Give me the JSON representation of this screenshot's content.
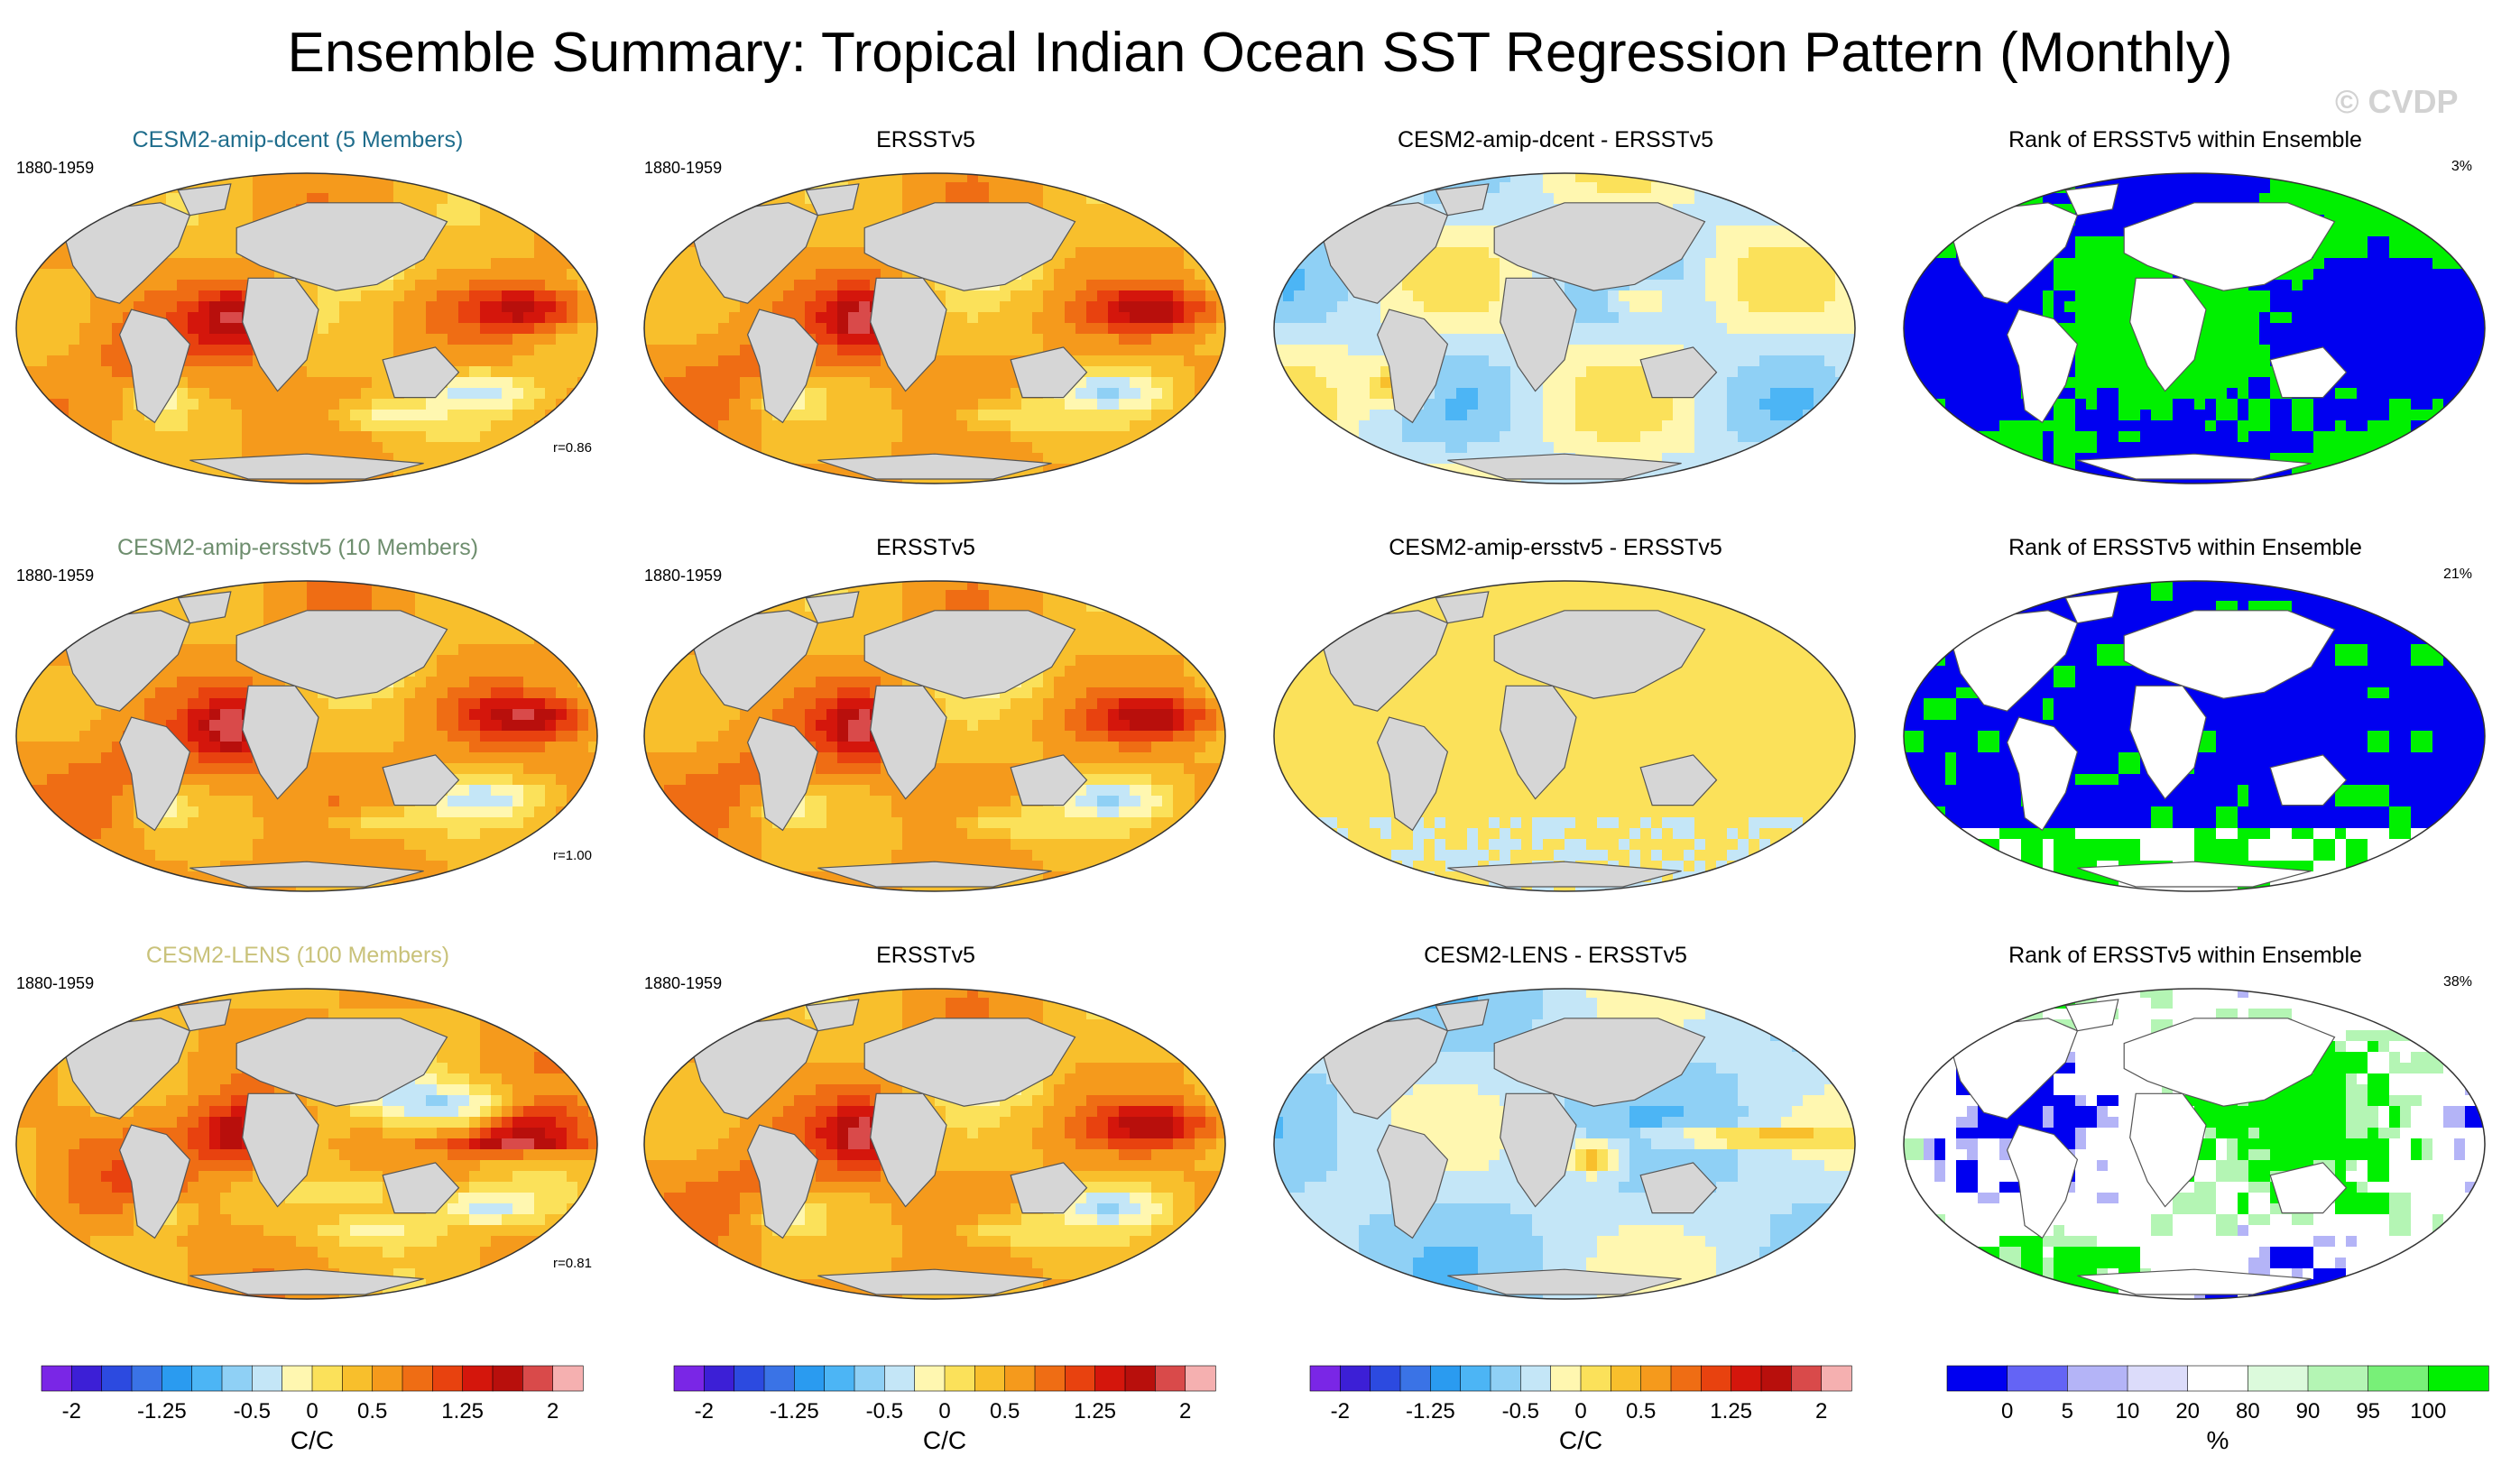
{
  "title": "Ensemble Summary: Tropical Indian Ocean SST Regression Pattern (Monthly)",
  "watermark": "© CVDP",
  "colors": {
    "div_scale": [
      "#7a26e6",
      "#3c1fd6",
      "#2c4ae0",
      "#3a73e6",
      "#2a9bf0",
      "#4cb5f5",
      "#8fd0f5",
      "#c4e6f7",
      "#fff7b0",
      "#fbe15a",
      "#f8bf2c",
      "#f59a1c",
      "#ef6d14",
      "#e8420f",
      "#d4160c",
      "#b80f0c",
      "#d94a4a",
      "#f5b0b0"
    ],
    "rank_scale": [
      "#0000f0",
      "#6464f5",
      "#b4b4f7",
      "#dcdcfa",
      "#ffffff",
      "#dcfadc",
      "#b4f5b4",
      "#78f078",
      "#00f000"
    ],
    "land": "#d6d6d6"
  },
  "chart_data": [
    {
      "type": "heatmap",
      "title": "CESM2-amip-dcent (5 Members)",
      "title_color": "#1f6d8c",
      "period": "1880-1959",
      "pattern_correlation": "r=0.86",
      "units": "C/C"
    },
    {
      "type": "heatmap",
      "title": "ERSSTv5",
      "period": "1880-1959",
      "units": "C/C"
    },
    {
      "type": "heatmap",
      "title": "CESM2-amip-dcent - ERSSTv5",
      "units": "C/C"
    },
    {
      "type": "heatmap",
      "title": "Rank of ERSSTv5 within Ensemble",
      "percent": "3%",
      "units": "%"
    },
    {
      "type": "heatmap",
      "title": "CESM2-amip-ersstv5 (10 Members)",
      "title_color": "#6e8e6e",
      "period": "1880-1959",
      "pattern_correlation": "r=1.00",
      "units": "C/C"
    },
    {
      "type": "heatmap",
      "title": "ERSSTv5",
      "period": "1880-1959",
      "units": "C/C"
    },
    {
      "type": "heatmap",
      "title": "CESM2-amip-ersstv5 - ERSSTv5",
      "units": "C/C"
    },
    {
      "type": "heatmap",
      "title": "Rank of ERSSTv5 within Ensemble",
      "percent": "21%",
      "units": "%"
    },
    {
      "type": "heatmap",
      "title": "CESM2-LENS (100 Members)",
      "title_color": "#c9c27a",
      "period": "1880-1959",
      "pattern_correlation": "r=0.81",
      "units": "C/C"
    },
    {
      "type": "heatmap",
      "title": "ERSSTv5",
      "period": "1880-1959",
      "units": "C/C"
    },
    {
      "type": "heatmap",
      "title": "CESM2-LENS - ERSSTv5",
      "units": "C/C"
    },
    {
      "type": "heatmap",
      "title": "Rank of ERSSTv5 within Ensemble",
      "percent": "38%",
      "units": "%"
    }
  ],
  "colorbars": [
    {
      "unit": "C/C",
      "ticks": [
        {
          "label": "-2",
          "v": -2
        },
        {
          "label": "-1.25",
          "v": -1.25
        },
        {
          "label": "-0.5",
          "v": -0.5
        },
        {
          "label": "0",
          "v": 0
        },
        {
          "label": "0.5",
          "v": 0.5
        },
        {
          "label": "1.25",
          "v": 1.25
        },
        {
          "label": "2",
          "v": 2
        }
      ]
    },
    {
      "unit": "C/C",
      "ticks": [
        {
          "label": "-2",
          "v": -2
        },
        {
          "label": "-1.25",
          "v": -1.25
        },
        {
          "label": "-0.5",
          "v": -0.5
        },
        {
          "label": "0",
          "v": 0
        },
        {
          "label": "0.5",
          "v": 0.5
        },
        {
          "label": "1.25",
          "v": 1.25
        },
        {
          "label": "2",
          "v": 2
        }
      ]
    },
    {
      "unit": "C/C",
      "ticks": [
        {
          "label": "-2",
          "v": -2
        },
        {
          "label": "-1.25",
          "v": -1.25
        },
        {
          "label": "-0.5",
          "v": -0.5
        },
        {
          "label": "0",
          "v": 0
        },
        {
          "label": "0.5",
          "v": 0.5
        },
        {
          "label": "1.25",
          "v": 1.25
        },
        {
          "label": "2",
          "v": 2
        }
      ]
    },
    {
      "unit": "%",
      "ticks": [
        {
          "label": "0",
          "i": 1
        },
        {
          "label": "5",
          "i": 2
        },
        {
          "label": "10",
          "i": 3
        },
        {
          "label": "20",
          "i": 4
        },
        {
          "label": "80",
          "i": 5
        },
        {
          "label": "90",
          "i": 6
        },
        {
          "label": "95",
          "i": 7
        },
        {
          "label": "100",
          "i": 8
        }
      ]
    }
  ]
}
